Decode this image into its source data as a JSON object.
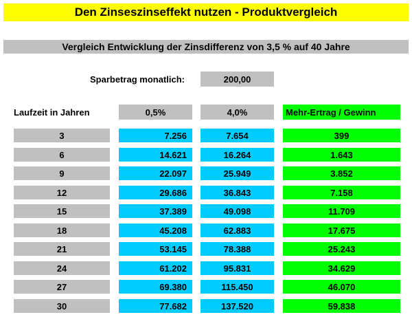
{
  "title": "Den Zinseszinseffekt nutzen - Produktvergleich",
  "subtitle": "Vergleich Entwicklung der Zinsdifferenz von 3,5 % auf 40 Jahre",
  "savings": {
    "label": "Sparbetrag monatlich:",
    "value": "200,00"
  },
  "headers": {
    "years": "Laufzeit in Jahren",
    "rate_low": "0,5%",
    "rate_high": "4,0%",
    "gain": "Mehr-Ertrag / Gewinn"
  },
  "rows": [
    {
      "years": "3",
      "low": "7.256",
      "high": "7.654",
      "gain": "399"
    },
    {
      "years": "6",
      "low": "14.621",
      "high": "16.264",
      "gain": "1.643"
    },
    {
      "years": "9",
      "low": "22.097",
      "high": "25.949",
      "gain": "3.852"
    },
    {
      "years": "12",
      "low": "29.686",
      "high": "36.843",
      "gain": "7.158"
    },
    {
      "years": "15",
      "low": "37.389",
      "high": "49.098",
      "gain": "11.709"
    },
    {
      "years": "18",
      "low": "45.208",
      "high": "62.883",
      "gain": "17.675"
    },
    {
      "years": "21",
      "low": "53.145",
      "high": "78.388",
      "gain": "25.243"
    },
    {
      "years": "24",
      "low": "61.202",
      "high": "95.831",
      "gain": "34.629"
    },
    {
      "years": "27",
      "low": "69.380",
      "high": "115.450",
      "gain": "46.070"
    },
    {
      "years": "30",
      "low": "77.682",
      "high": "137.520",
      "gain": "59.838"
    }
  ],
  "colors": {
    "title_bg": "#ffff00",
    "gray": "#c0c0c0",
    "blue": "#00ccff",
    "green": "#00ff00"
  }
}
